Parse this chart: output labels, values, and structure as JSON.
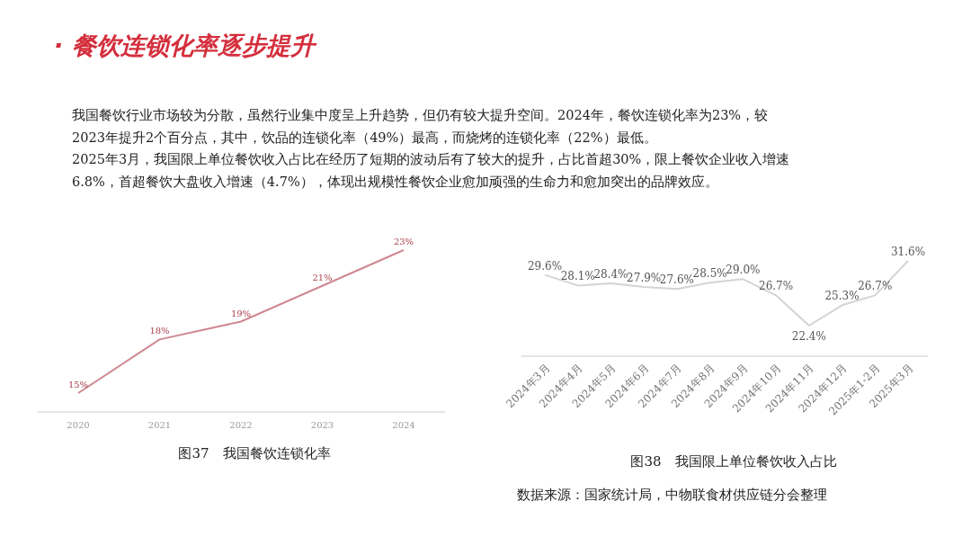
{
  "chart_data": [
    {
      "type": "other",
      "title": "· 餐饮连锁化率逐步提升",
      "annotations": [
        "我国餐饮行业市场较为分散，虽然行业集中度呈上升趋势，但仍有较大提升空间。2024年，餐饮连锁化率为23%，较",
        "2023年提升2个百分点，其中，饮品的连锁化率（49%）最高，而烧烤的连锁化率（22%）最低。",
        "2025年3月，我国限上单位餐饮收入占比在经历了短期的波动后有了较大的提升，占比首超30%，限上餐饮企业收入增速",
        "6.8%，首超餐饮大盘收入增速（4.7%），体现出规模性餐饮企业愈加顽强的生命力和愈加突出的品牌效应。"
      ]
    },
    {
      "type": "line",
      "title": "图37　我国餐饮连锁化率",
      "categories": [
        "2020",
        "2021",
        "2022",
        "2023",
        "2024"
      ],
      "color": "#cf8892",
      "values": [
        15,
        18,
        19,
        21,
        23
      ],
      "value_labels": [
        "15%",
        "18%",
        "19%",
        "21%",
        "23%"
      ]
    },
    {
      "type": "line",
      "title": "图38　我国限上单位餐饮收入占比",
      "categories": [
        "2024年3月",
        "2024年4月",
        "2024年5月",
        "2024年6月",
        "2024年7月",
        "2024年8月",
        "2024年9月",
        "2024年10月",
        "2024年11月",
        "2024年12月",
        "2025年1-2月",
        "2025年3月"
      ],
      "color": "#d4d4d4",
      "values": [
        29.6,
        28.1,
        28.4,
        27.9,
        27.6,
        28.5,
        29.0,
        26.7,
        22.4,
        25.3,
        26.7,
        31.6
      ],
      "value_labels": [
        "29.6%",
        "28.1%",
        "28.4%",
        "27.9%",
        "27.6%",
        "28.5%",
        "29.0%",
        "26.7%",
        "22.4%",
        "25.3%",
        "26.7%",
        "31.6%"
      ],
      "annotations": [
        "数据来源：国家统计局，中物联食材供应链分会整理"
      ]
    }
  ]
}
